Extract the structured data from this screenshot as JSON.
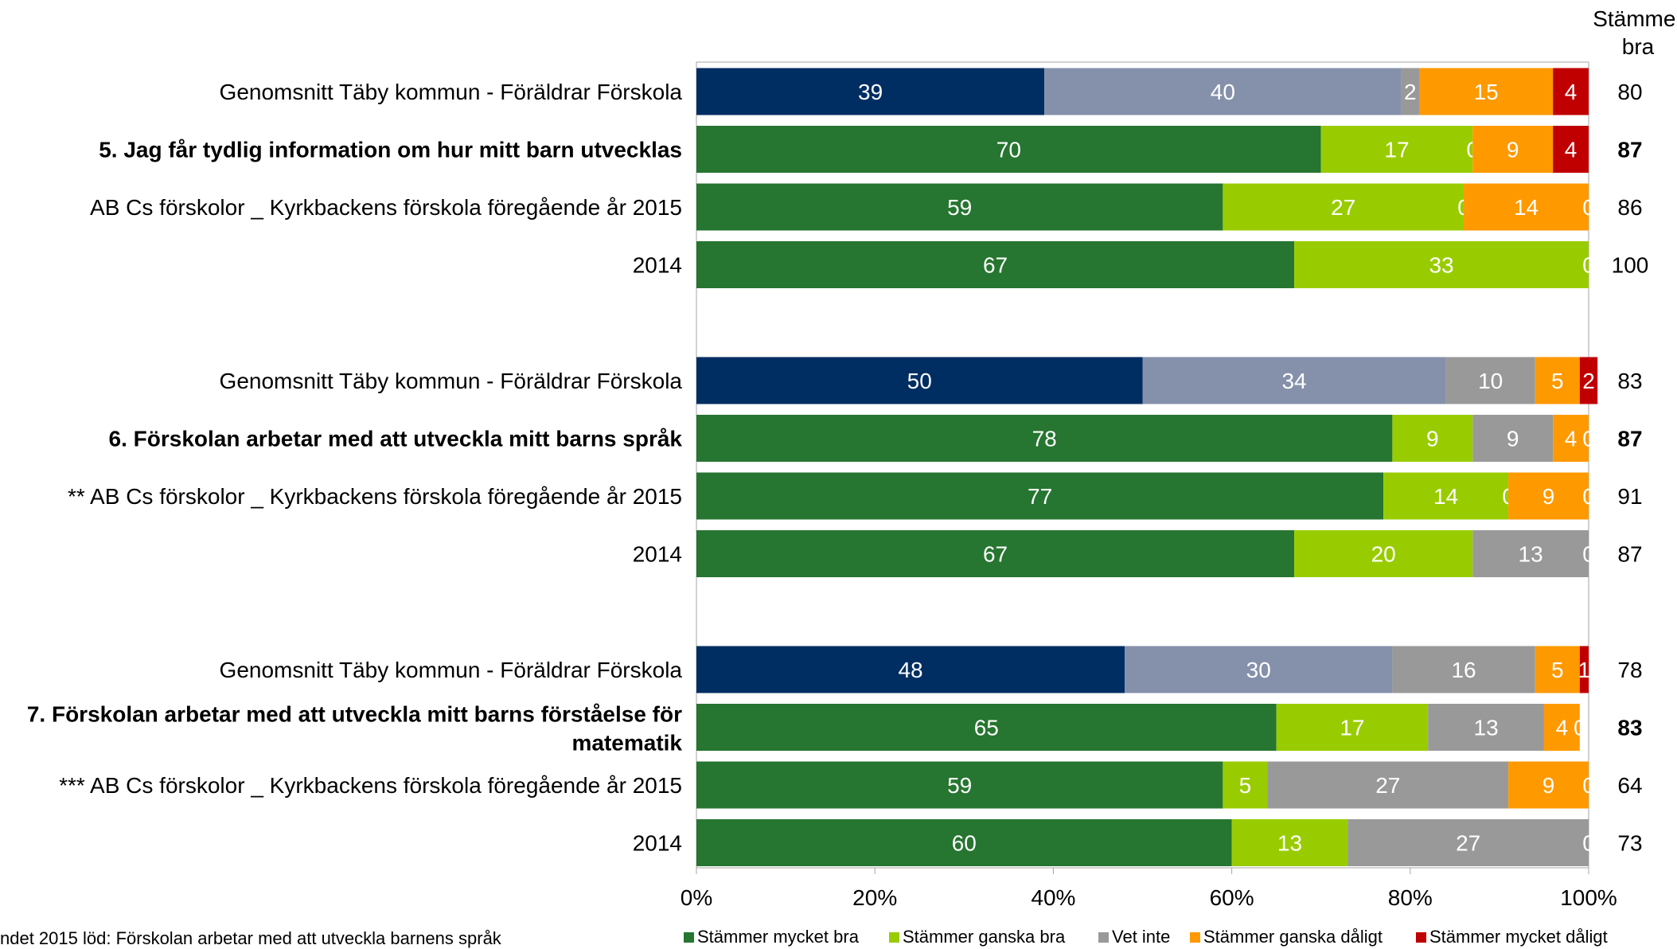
{
  "chart_data": {
    "type": "bar",
    "orientation": "horizontal",
    "stacked": true,
    "percent": true,
    "xlim": [
      0,
      100
    ],
    "x_ticks": [
      "0%",
      "20%",
      "40%",
      "60%",
      "80%",
      "100%"
    ],
    "right_column_header": [
      "Stämmer",
      "bra"
    ],
    "footnote": "ndet 2015 löd: Förskolan arbetar med att utveckla barnens språk",
    "legend": {
      "placement": "bottom",
      "entries": [
        {
          "label": "Stämmer mycket bra",
          "color": "#267530"
        },
        {
          "label": "Stämmer ganska bra",
          "color": "#99cc00"
        },
        {
          "label": "Vet inte",
          "color": "#999999"
        },
        {
          "label": "Stämmer ganska dåligt",
          "color": "#ff9900"
        },
        {
          "label": "Stämmer mycket dåligt",
          "color": "#c00000"
        }
      ]
    },
    "groups": [
      {
        "rows": [
          {
            "label": [
              "Genomsnitt Täby kommun - Föräldrar Förskola"
            ],
            "bold": false,
            "values": [
              39,
              40,
              2,
              15,
              4
            ],
            "labels": [
              "39",
              "40",
              "2",
              "15",
              "4"
            ],
            "colors": [
              "#002d62",
              "#8591ab",
              "#999999",
              "#ff9900",
              "#c00000"
            ],
            "total": "80"
          },
          {
            "label": [
              "5. Jag får tydlig information om hur mitt barn utvecklas"
            ],
            "bold": true,
            "values": [
              70,
              17,
              0,
              9,
              4
            ],
            "labels": [
              "70",
              "17",
              "0",
              "9",
              "4"
            ],
            "colors": [
              "#267530",
              "#99cc00",
              "#999999",
              "#ff9900",
              "#c00000"
            ],
            "total": "87"
          },
          {
            "label": [
              "AB Cs förskolor _ Kyrkbackens förskola föregående år 2015"
            ],
            "bold": false,
            "values": [
              59,
              27,
              0,
              14,
              0
            ],
            "labels": [
              "59",
              "27",
              "0",
              "14",
              "0"
            ],
            "colors": [
              "#267530",
              "#99cc00",
              "#999999",
              "#ff9900",
              "#c00000"
            ],
            "total": "86"
          },
          {
            "label": [
              "2014"
            ],
            "bold": false,
            "values": [
              67,
              33,
              0,
              0,
              0
            ],
            "labels": [
              "67",
              "33",
              "0",
              "",
              ""
            ],
            "colors": [
              "#267530",
              "#99cc00",
              "#999999",
              "#ff9900",
              "#c00000"
            ],
            "total": "100"
          }
        ]
      },
      {
        "rows": [
          {
            "label": [
              "Genomsnitt Täby kommun - Föräldrar Förskola"
            ],
            "bold": false,
            "values": [
              50,
              34,
              10,
              5,
              2
            ],
            "labels": [
              "50",
              "34",
              "10",
              "5",
              "2"
            ],
            "colors": [
              "#002d62",
              "#8591ab",
              "#999999",
              "#ff9900",
              "#c00000"
            ],
            "total": "83"
          },
          {
            "label": [
              "6. Förskolan arbetar med att utveckla mitt barns språk"
            ],
            "bold": true,
            "values": [
              78,
              9,
              9,
              4,
              0
            ],
            "labels": [
              "78",
              "9",
              "9",
              "4",
              "0"
            ],
            "colors": [
              "#267530",
              "#99cc00",
              "#999999",
              "#ff9900",
              "#c00000"
            ],
            "total": "87"
          },
          {
            "label": [
              "** AB Cs förskolor _ Kyrkbackens förskola föregående år 2015"
            ],
            "bold": false,
            "values": [
              77,
              14,
              0,
              9,
              0
            ],
            "labels": [
              "77",
              "14",
              "0",
              "9",
              "0"
            ],
            "colors": [
              "#267530",
              "#99cc00",
              "#999999",
              "#ff9900",
              "#c00000"
            ],
            "total": "91"
          },
          {
            "label": [
              "2014"
            ],
            "bold": false,
            "values": [
              67,
              20,
              13,
              0,
              0
            ],
            "labels": [
              "67",
              "20",
              "13",
              "0",
              ""
            ],
            "colors": [
              "#267530",
              "#99cc00",
              "#999999",
              "#ff9900",
              "#c00000"
            ],
            "total": "87"
          }
        ]
      },
      {
        "rows": [
          {
            "label": [
              "Genomsnitt Täby kommun - Föräldrar Förskola"
            ],
            "bold": false,
            "values": [
              48,
              30,
              16,
              5,
              1
            ],
            "labels": [
              "48",
              "30",
              "16",
              "5",
              "1"
            ],
            "colors": [
              "#002d62",
              "#8591ab",
              "#999999",
              "#ff9900",
              "#c00000"
            ],
            "total": "78"
          },
          {
            "label": [
              "7. Förskolan arbetar med att utveckla mitt barns förståelse för",
              "matematik"
            ],
            "bold": true,
            "values": [
              65,
              17,
              13,
              4,
              0
            ],
            "labels": [
              "65",
              "17",
              "13",
              "4",
              "0"
            ],
            "colors": [
              "#267530",
              "#99cc00",
              "#999999",
              "#ff9900",
              "#c00000"
            ],
            "total": "83"
          },
          {
            "label": [
              "*** AB Cs förskolor _ Kyrkbackens förskola föregående år 2015"
            ],
            "bold": false,
            "values": [
              59,
              5,
              27,
              9,
              0
            ],
            "labels": [
              "59",
              "5",
              "27",
              "9",
              "0"
            ],
            "colors": [
              "#267530",
              "#99cc00",
              "#999999",
              "#ff9900",
              "#c00000"
            ],
            "total": "64"
          },
          {
            "label": [
              "2014"
            ],
            "bold": false,
            "values": [
              60,
              13,
              27,
              0,
              0
            ],
            "labels": [
              "60",
              "13",
              "27",
              "0",
              ""
            ],
            "colors": [
              "#267530",
              "#99cc00",
              "#999999",
              "#ff9900",
              "#c00000"
            ],
            "total": "73"
          }
        ]
      }
    ]
  }
}
